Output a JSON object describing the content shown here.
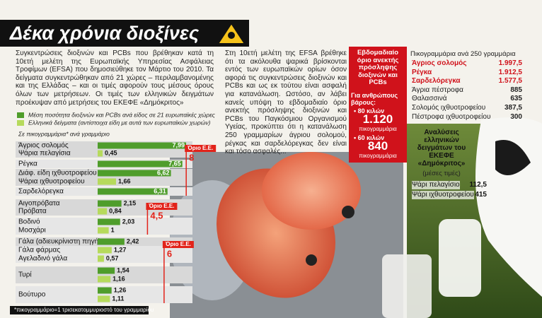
{
  "header": {
    "title": "Δέκα χρόνια διοξίνες"
  },
  "intro": "Συγκεντρώσεις διοξινών και PCBs που βρέθηκαν κατά τη 10ετή μελέτη της Ευρωπαϊκής Υπηρεσίας Ασφάλειας Τροφίμων (EFSA) που δημοσιεύθηκε τον Μάρτιο του 2010. Τα δείγματα συγκεντρώθηκαν από 21 χώρες – περιλαμβανομένης και της Ελλάδας – και οι τιμές αφορούν τους μέσους όρους όλων των μετρήσεων. Οι τιμές των ελληνικών δειγμάτων προέκυψαν από μετρήσεις του ΕΚΕΦΕ «Δημόκριτος»",
  "article": "Στη 10ετή μελέτη της EFSA βρέθηκε ότι τα ακόλουθα ψαρικά βρίσκονται εντός των ευρωπαϊκών ορίων όσον αφορά τις συγκεντρώσεις διοξινών και PCBs και ως εκ τούτου είναι ασφαλή για κατανάλωση. Ωστόσο, αν λάβει κανείς υπόψη το εβδομαδιαίο όριο ανεκτής πρόσληψης διοξινών και PCBs του Παγκόσμιου Οργανισμού Υγείας, προκύπτει ότι η κατανάλωση 250 γραμμαρίων άγριου σολομού, ρέγκας και σαρδελόρεγκας δεν είναι και τόσο ασφαλές...",
  "weekly_box": {
    "title": "Εβδομαδιαίο όριο ανεκτής πρόσληψης διοξινών και PCBs",
    "subtitle": "Για ανθρώπους βάρους:",
    "items": [
      {
        "weight": "• 80 κιλών",
        "amount": "1.120",
        "unit": "πικογραμμάρια"
      },
      {
        "weight": "• 60 κιλών",
        "amount": "840",
        "unit": "πικογραμμάρια"
      }
    ]
  },
  "table": {
    "title": "Πικογραμμάρια ανά 250 γραμμάρια",
    "rows": [
      [
        "Άγριος σολομός",
        "1.997,5"
      ],
      [
        "Ρέγκα",
        "1.912,5"
      ],
      [
        "Σαρδελόρεγκα",
        "1.577,5"
      ],
      [
        "Άγρια πέστροφα",
        "885"
      ],
      [
        "Θαλασσινά",
        "635"
      ],
      [
        "Σολομός ιχθυοτροφείου",
        "387,5"
      ],
      [
        "Πέστροφα ιχθυοτροφείου",
        "300"
      ]
    ],
    "highlight": [
      true,
      true,
      true,
      false,
      false,
      false,
      false
    ],
    "highlight_color": "#d0121b"
  },
  "analysis": {
    "title": "Αναλύσεις ελληνικών δειγμάτων του ΕΚΕΦΕ «Δημόκριτος»",
    "subtitle": "(μέσες τιμές)",
    "rows": [
      [
        "Ψάρι πελαγίσιο",
        "112,5"
      ],
      [
        "Ψάρι ιχθυοτροφείου",
        "415"
      ]
    ]
  },
  "chart_data": {
    "type": "hbar",
    "unit_label": "Σε πικογραμμάρια* ανά γραμμάριο",
    "categories": [
      "Άγριος σολομός",
      "Ψάρια πελαγίσια",
      "Ρέγκα",
      "Διάφ. είδη ιχθυοτροφείου",
      "Ψάρια ιχθυοτροφείου",
      "Σαρδελόρεγκα",
      "Αιγοπρόβατα",
      "Πρόβατα",
      "Βοδινό",
      "Μοσχάρι",
      "Γάλα (αδιευκρίνιστη πηγή)",
      "Γάλα φάρμας",
      "Αγελαδινό γάλα",
      "Τυρί",
      null,
      "Βούτυρο",
      null
    ],
    "series": [
      {
        "name": "Μέση ποσότητα διοξινών και PCBs ανά είδος σε 21 ευρωπαϊκές χώρες",
        "color": "#4f9d2b",
        "values": [
          7.99,
          null,
          7.65,
          6.62,
          null,
          6.31,
          2.15,
          null,
          2.03,
          null,
          2.42,
          null,
          null,
          1.54,
          null,
          1.26,
          null
        ],
        "value_labels": [
          "7,99",
          null,
          "7,65",
          "6,62",
          null,
          "6,31",
          "2,15",
          null,
          "2,03",
          null,
          "2,42",
          null,
          null,
          "1,54",
          null,
          "1,26",
          null
        ]
      },
      {
        "name": "Ελληνικά δείγματα (αντίστοιχα είδη με αυτά των ευρωπαϊκών χωρών)",
        "color": "#b6da5c",
        "values": [
          null,
          0.45,
          null,
          null,
          1.66,
          null,
          null,
          0.84,
          null,
          1,
          null,
          1.27,
          0.57,
          null,
          1.16,
          null,
          1.11
        ],
        "value_labels": [
          null,
          "0,45",
          null,
          null,
          "1,66",
          null,
          null,
          "0,84",
          null,
          "1",
          null,
          "1,27",
          "0,57",
          null,
          "1,16",
          null,
          "1,11"
        ]
      }
    ],
    "xlim": [
      0,
      8.5
    ],
    "limits": [
      {
        "label": "Όριο Ε.Ε.",
        "value": 8,
        "color": "#e2231a"
      },
      {
        "label": "Όριο Ε.Ε.",
        "value": 4.5,
        "value_label": "4,5",
        "color": "#e2231a"
      },
      {
        "label": "Όριο Ε.Ε.",
        "value": 6,
        "color": "#e2231a"
      }
    ],
    "footnote": "*πικογραμμάριο=1 τρισεκατομμυριοστό του γραμμαρίου"
  }
}
